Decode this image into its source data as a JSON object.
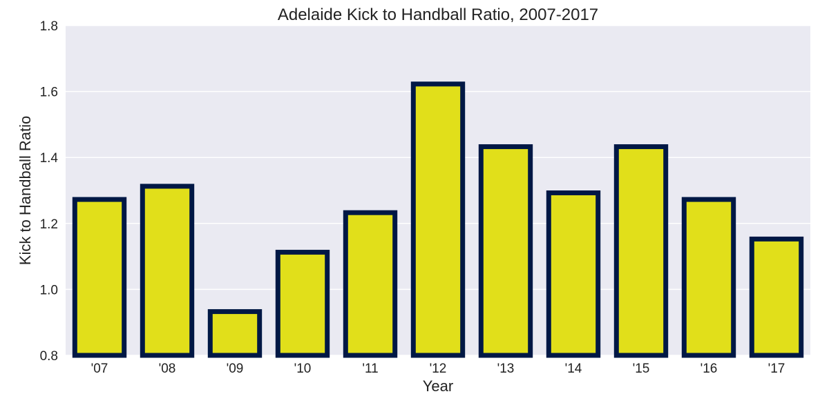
{
  "chart_data": {
    "type": "bar",
    "title": "Adelaide Kick to Handball Ratio, 2007-2017",
    "xlabel": "Year",
    "ylabel": "Kick to Handball Ratio",
    "categories": [
      "'07",
      "'08",
      "'09",
      "'10",
      "'11",
      "'12",
      "'13",
      "'14",
      "'15",
      "'16",
      "'17"
    ],
    "values": [
      1.28,
      1.32,
      0.94,
      1.12,
      1.24,
      1.63,
      1.44,
      1.3,
      1.44,
      1.28,
      1.16
    ],
    "ylim": [
      0.8,
      1.8
    ],
    "yticks": [
      "0.8",
      "1.0",
      "1.2",
      "1.4",
      "1.6",
      "1.8"
    ],
    "grid": true,
    "colors": {
      "bar_fill": "#e1df1a",
      "bar_edge": "#001845",
      "plot_background": "#eaeaf2",
      "grid": "#ffffff"
    }
  }
}
